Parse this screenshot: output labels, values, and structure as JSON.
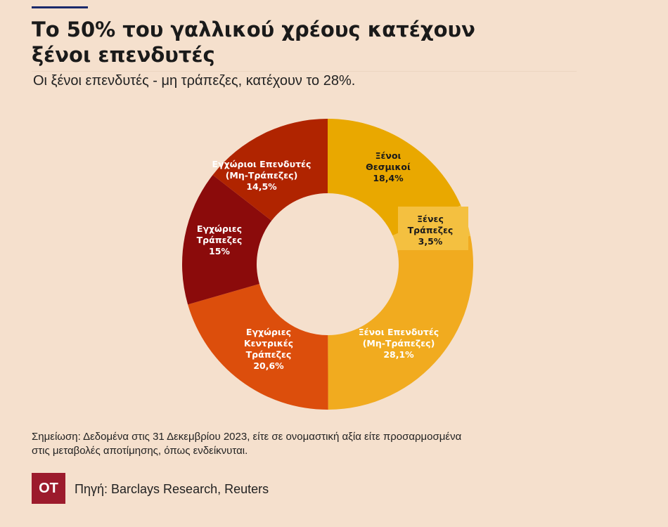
{
  "title_lines": [
    "Το 50% του γαλλικού χρέους κατέχουν",
    "ξένοι επενδυτές"
  ],
  "subtitle": "Οι ξένοι επενδυτές - μη τράπεζες, κατέχουν το 28%.",
  "note_lines": [
    "Σημείωση: Δεδομένα στις 31 Δεκεμβρίου 2023,  είτε σε ονομαστική αξία είτε προσαρμοσμένα",
    "στις μεταβολές αποτίμησης, όπως ενδείκνυται."
  ],
  "logo_text": "ΟΤ",
  "source": "Πηγή: Barclays Research, Reuters",
  "chart_data": {
    "type": "pie",
    "hole": "donut",
    "start": "top, clockwise",
    "slices": [
      {
        "label_lines": [
          "Ξένοι",
          "Θεσμικοί",
          "18,4%"
        ],
        "value": 18.4,
        "color": "#e9a800",
        "text_color": "#1a1a1a"
      },
      {
        "label_lines": [
          "Ξένες",
          "Τράπεζες",
          "3,5%"
        ],
        "value": 3.5,
        "color": "#f4c040",
        "text_color": "#1a1a1a"
      },
      {
        "label_lines": [
          "Ξένοι Επενδυτές",
          "(Μη-Τράπεζες)",
          "28,1%"
        ],
        "value": 28.1,
        "color": "#f1ab1f",
        "text_color": "#ffffff"
      },
      {
        "label_lines": [
          "Εγχώριες",
          "Κεντρικές",
          "Τράπεζες",
          "20,6%"
        ],
        "value": 20.6,
        "color": "#dc4e0c",
        "text_color": "#ffffff"
      },
      {
        "label_lines": [
          "Εγχώριες",
          "Τράπεζες",
          "15%"
        ],
        "value": 15,
        "color": "#8b0b0b",
        "text_color": "#ffffff"
      },
      {
        "label_lines": [
          "Εγχώριοι Επενδυτές",
          "(Μη-Τράπεζες)",
          "14,5%"
        ],
        "value": 14.5,
        "color": "#b02400",
        "text_color": "#ffffff"
      }
    ]
  }
}
